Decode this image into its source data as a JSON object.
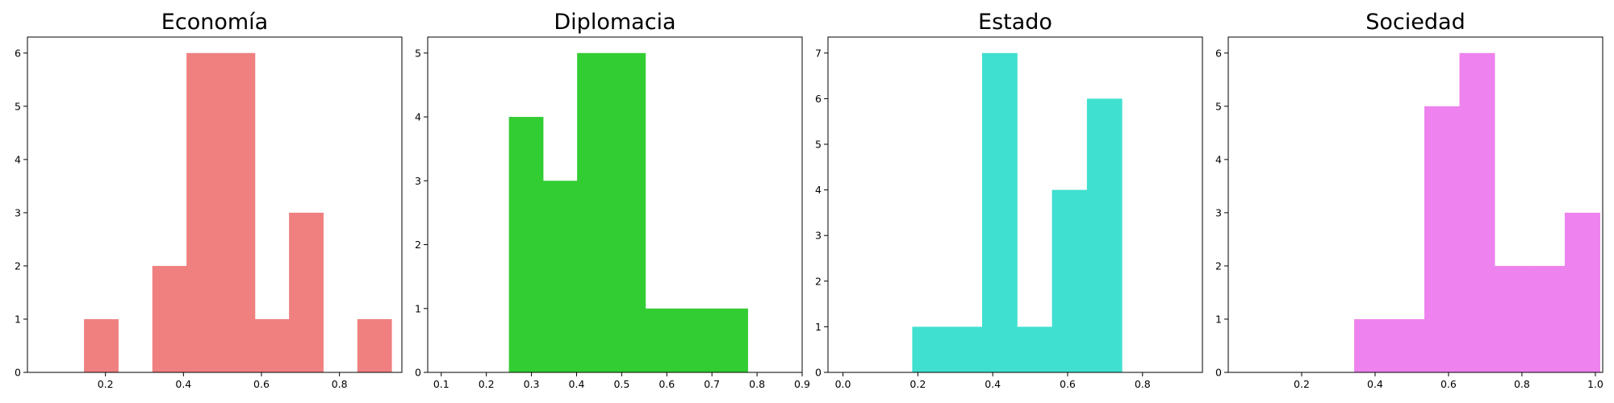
{
  "chart_data": [
    {
      "type": "bar",
      "title": "Economía",
      "color": "#F08080",
      "xlim": [
        0.0,
        0.96
      ],
      "ylim": [
        0,
        6.3
      ],
      "xticks": [
        0.2,
        0.4,
        0.6,
        0.8
      ],
      "xtick_labels": [
        "0.2",
        "0.4",
        "0.6",
        "0.8"
      ],
      "yticks": [
        0,
        1,
        2,
        3,
        4,
        5,
        6
      ],
      "ytick_labels": [
        "0",
        "1",
        "2",
        "3",
        "4",
        "5",
        "6"
      ],
      "bins": [
        {
          "x0": 0.145,
          "x1": 0.2326,
          "count": 1
        },
        {
          "x0": 0.2326,
          "x1": 0.3202,
          "count": 0
        },
        {
          "x0": 0.3202,
          "x1": 0.4078,
          "count": 2
        },
        {
          "x0": 0.4078,
          "x1": 0.4954,
          "count": 6
        },
        {
          "x0": 0.4954,
          "x1": 0.583,
          "count": 6
        },
        {
          "x0": 0.583,
          "x1": 0.6706,
          "count": 1
        },
        {
          "x0": 0.6706,
          "x1": 0.7582,
          "count": 3
        },
        {
          "x0": 0.7582,
          "x1": 0.8458,
          "count": 0
        },
        {
          "x0": 0.8458,
          "x1": 0.9334,
          "count": 1
        }
      ]
    },
    {
      "type": "bar",
      "title": "Diplomacia",
      "color": "#32CD32",
      "xlim": [
        0.07,
        0.9
      ],
      "ylim": [
        0,
        5.25
      ],
      "xticks": [
        0.1,
        0.2,
        0.3,
        0.4,
        0.5,
        0.6,
        0.7,
        0.8,
        0.9
      ],
      "xtick_labels": [
        "0.1",
        "0.2",
        "0.3",
        "0.4",
        "0.5",
        "0.6",
        "0.7",
        "0.8",
        "0.9"
      ],
      "yticks": [
        0,
        1,
        2,
        3,
        4,
        5
      ],
      "ytick_labels": [
        "0",
        "1",
        "2",
        "3",
        "4",
        "5"
      ],
      "bins": [
        {
          "x0": 0.25,
          "x1": 0.3256,
          "count": 4
        },
        {
          "x0": 0.3256,
          "x1": 0.4012,
          "count": 3
        },
        {
          "x0": 0.4012,
          "x1": 0.4768,
          "count": 5
        },
        {
          "x0": 0.4768,
          "x1": 0.5524,
          "count": 5
        },
        {
          "x0": 0.5524,
          "x1": 0.628,
          "count": 1
        },
        {
          "x0": 0.628,
          "x1": 0.7036,
          "count": 1
        },
        {
          "x0": 0.7036,
          "x1": 0.7792,
          "count": 1
        }
      ]
    },
    {
      "type": "bar",
      "title": "Estado",
      "color": "#40E0D0",
      "xlim": [
        -0.04,
        0.96
      ],
      "ylim": [
        0,
        7.35
      ],
      "xticks": [
        0.0,
        0.2,
        0.4,
        0.6,
        0.8
      ],
      "xtick_labels": [
        "0.0",
        "0.2",
        "0.4",
        "0.6",
        "0.8"
      ],
      "yticks": [
        0,
        1,
        2,
        3,
        4,
        5,
        6,
        7
      ],
      "ytick_labels": [
        "0",
        "1",
        "2",
        "3",
        "4",
        "5",
        "6",
        "7"
      ],
      "bins": [
        {
          "x0": 0.185,
          "x1": 0.2783,
          "count": 1
        },
        {
          "x0": 0.2783,
          "x1": 0.3716,
          "count": 1
        },
        {
          "x0": 0.3716,
          "x1": 0.4649,
          "count": 7
        },
        {
          "x0": 0.4649,
          "x1": 0.5582,
          "count": 1
        },
        {
          "x0": 0.5582,
          "x1": 0.6515,
          "count": 4
        },
        {
          "x0": 0.6515,
          "x1": 0.7448,
          "count": 6
        }
      ]
    },
    {
      "type": "bar",
      "title": "Sociedad",
      "color": "#EE82EE",
      "xlim": [
        0.0,
        1.02
      ],
      "ylim": [
        0,
        6.3
      ],
      "xticks": [
        0.2,
        0.4,
        0.6,
        0.8,
        1.0
      ],
      "xtick_labels": [
        "0.2",
        "0.4",
        "0.6",
        "0.8",
        "1.0"
      ],
      "yticks": [
        0,
        1,
        2,
        3,
        4,
        5,
        6
      ],
      "ytick_labels": [
        "0",
        "1",
        "2",
        "3",
        "4",
        "5",
        "6"
      ],
      "bins": [
        {
          "x0": 0.343,
          "x1": 0.4386,
          "count": 1
        },
        {
          "x0": 0.4386,
          "x1": 0.5342,
          "count": 1
        },
        {
          "x0": 0.5342,
          "x1": 0.6298,
          "count": 5
        },
        {
          "x0": 0.6298,
          "x1": 0.7254,
          "count": 6
        },
        {
          "x0": 0.7254,
          "x1": 0.821,
          "count": 2
        },
        {
          "x0": 0.821,
          "x1": 0.9166,
          "count": 2
        },
        {
          "x0": 0.9166,
          "x1": 1.0122,
          "count": 3
        }
      ]
    }
  ]
}
